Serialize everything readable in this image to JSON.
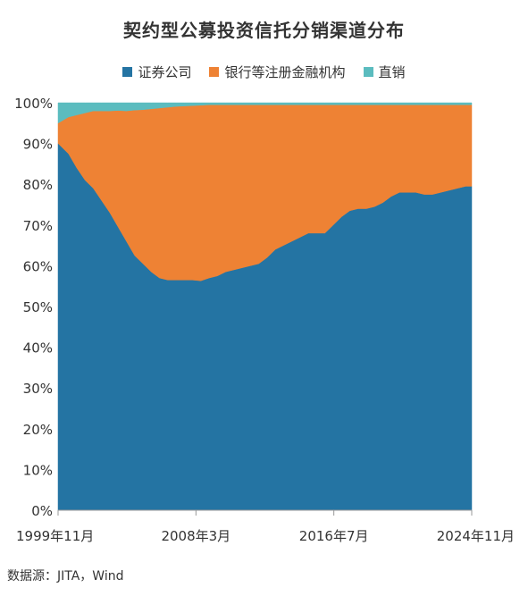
{
  "chart_data": {
    "type": "area",
    "stacked": true,
    "percent": true,
    "title": "契约型公募投资信托分销渠道分布",
    "x_ticks": [
      "1999年11月",
      "2008年3月",
      "2016年7月",
      "2024年11月"
    ],
    "x_range": [
      "1999年11月",
      "2024年11月"
    ],
    "y_ticks": [
      "0%",
      "10%",
      "20%",
      "30%",
      "40%",
      "50%",
      "60%",
      "70%",
      "80%",
      "90%",
      "100%"
    ],
    "ylim": [
      0,
      100
    ],
    "legend_position": "top",
    "x": [
      1999.87,
      2000.5,
      2001.0,
      2001.5,
      2002.0,
      2002.5,
      2003.0,
      2003.5,
      2004.0,
      2004.5,
      2005.0,
      2005.5,
      2006.0,
      2006.5,
      2007.0,
      2007.5,
      2008.0,
      2008.5,
      2009.0,
      2009.5,
      2010.0,
      2010.5,
      2011.0,
      2011.5,
      2012.0,
      2012.5,
      2013.0,
      2013.5,
      2014.0,
      2014.5,
      2015.0,
      2015.5,
      2016.0,
      2016.5,
      2017.0,
      2017.5,
      2018.0,
      2018.5,
      2019.0,
      2019.5,
      2020.0,
      2020.5,
      2021.0,
      2021.5,
      2022.0,
      2022.5,
      2023.0,
      2023.5,
      2024.0,
      2024.5,
      2024.87
    ],
    "series": [
      {
        "name": "证券公司",
        "color": "#2474a3",
        "values": [
          90,
          87.5,
          84,
          81,
          79,
          76,
          73,
          69.5,
          66,
          62.5,
          60.5,
          58.5,
          57,
          56.5,
          56.5,
          56.5,
          56.5,
          56.3,
          57,
          57.5,
          58.5,
          59,
          59.5,
          60,
          60.5,
          62,
          64,
          65,
          66,
          67,
          68,
          68,
          68,
          70,
          72,
          73.5,
          74,
          74,
          74.5,
          75.5,
          77,
          78,
          78,
          78,
          77.5,
          77.5,
          78,
          78.5,
          79,
          79.5,
          79.5
        ]
      },
      {
        "name": "银行等注册金融机构",
        "color": "#ee8234",
        "values": [
          5,
          9,
          13,
          16.5,
          19,
          22,
          25,
          28.6,
          32,
          35.7,
          37.8,
          40,
          41.7,
          42.4,
          42.6,
          42.7,
          42.8,
          43.1,
          42.5,
          42,
          41,
          40.5,
          40,
          39.5,
          39,
          37.5,
          35.5,
          34.5,
          33.5,
          32.5,
          31.5,
          31.5,
          31.5,
          29.5,
          27.5,
          26,
          25.5,
          25.5,
          25,
          24,
          22.5,
          21.5,
          21.5,
          21.5,
          22,
          22,
          21.5,
          21,
          20.5,
          20,
          20
        ]
      },
      {
        "name": "直销",
        "color": "#5bbcbf",
        "values": [
          5,
          3.5,
          3,
          2.5,
          2,
          2,
          2,
          1.9,
          2,
          1.8,
          1.7,
          1.5,
          1.3,
          1.1,
          0.9,
          0.8,
          0.7,
          0.6,
          0.5,
          0.5,
          0.5,
          0.5,
          0.5,
          0.5,
          0.5,
          0.5,
          0.5,
          0.5,
          0.5,
          0.5,
          0.5,
          0.5,
          0.5,
          0.5,
          0.5,
          0.5,
          0.5,
          0.5,
          0.5,
          0.5,
          0.5,
          0.5,
          0.5,
          0.5,
          0.5,
          0.5,
          0.5,
          0.5,
          0.5,
          0.5,
          0.5
        ]
      }
    ]
  },
  "source": "数据源：JITA，Wind"
}
